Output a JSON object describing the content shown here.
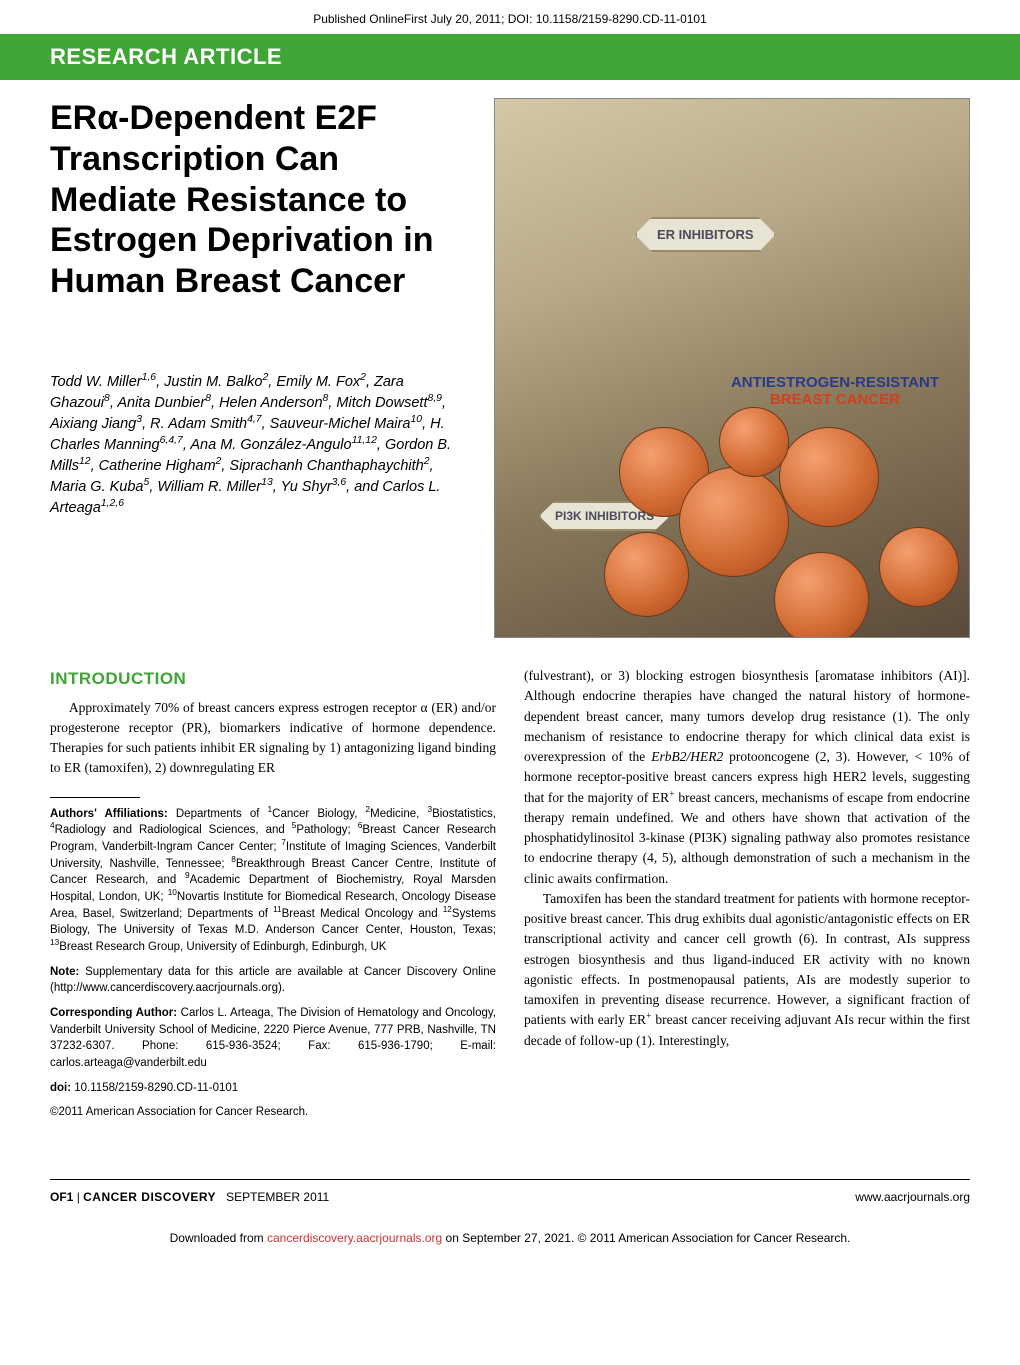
{
  "pub_info": "Published OnlineFirst July 20, 2011; DOI: 10.1158/2159-8290.CD-11-0101",
  "banner": "RESEARCH ARTICLE",
  "title_html": "ERα-Dependent E2F Transcription Can Mediate Resistance to Estrogen Deprivation in Human Breast Cancer",
  "authors_html": "Todd W. Miller<sup>1,6</sup>, Justin M. Balko<sup>2</sup>, Emily M. Fox<sup>2</sup>, Zara Ghazoui<sup>8</sup>, Anita Dunbier<sup>8</sup>, Helen Anderson<sup>8</sup>, Mitch Dowsett<sup>8,9</sup>, Aixiang Jiang<sup>3</sup>, R. Adam Smith<sup>4,7</sup>, Sauveur-Michel Maira<sup>10</sup>, H. Charles Manning<sup>6,4,7</sup>, Ana M. González-Angulo<sup>11,12</sup>, Gordon B. Mills<sup>12</sup>, Catherine Higham<sup>2</sup>, Siprachanh Chanthaphaychith<sup>2</sup>, Maria G. Kuba<sup>5</sup>, William R. Miller<sup>13</sup>, Yu Shyr<sup>3,6</sup>, and Carlos L. Arteaga<sup>1,2,6</sup>",
  "figure": {
    "hex1": "ER INHIBITORS",
    "hex2": "PI3K INHIBITORS",
    "resist_l1": "ANTIESTROGEN-RESISTANT",
    "resist_l2": "BREAST CANCER"
  },
  "intro_heading": "INTRODUCTION",
  "intro_p1": "Approximately 70% of breast cancers express estrogen receptor α (ER) and/or progesterone receptor (PR), biomarkers indicative of hormone dependence. Therapies for such patients inhibit ER signaling by 1) antagonizing ligand binding to ER (tamoxifen), 2) downregulating ER",
  "col2_p1_html": "(fulvestrant), or 3) blocking estrogen biosynthesis [aromatase inhibitors (AI)]. Although endocrine therapies have changed the natural history of hormone-dependent breast cancer, many tumors develop drug resistance (1). The only mechanism of resistance to endocrine therapy for which clinical data exist is overexpression of the <i>ErbB2/HER2</i> protooncogene (2, 3). However, &lt; 10% of hormone receptor-positive breast cancers express high HER2 levels, suggesting that for the majority of ER<sup>+</sup> breast cancers, mechanisms of escape from endocrine therapy remain undefined. We and others have shown that activation of the phosphatidylinositol 3-kinase (PI3K) signaling pathway also promotes resistance to endocrine therapy (4, 5), although demonstration of such a mechanism in the clinic awaits confirmation.",
  "col2_p2_html": "Tamoxifen has been the standard treatment for patients with hormone receptor-positive breast cancer. This drug exhibits dual agonistic/antagonistic effects on ER transcriptional activity and cancer cell growth (6). In contrast, AIs suppress estrogen biosynthesis and thus ligand-induced ER activity with no known agonistic effects. In postmenopausal patients, AIs are modestly superior to tamoxifen in preventing disease recurrence. However, a significant fraction of patients with early ER<sup>+</sup> breast cancer receiving adjuvant AIs recur within the first decade of follow-up (1). Interestingly,",
  "affiliations_html": "<span class=\"label\">Authors' Affiliations:</span> Departments of <sup>1</sup>Cancer Biology, <sup>2</sup>Medicine, <sup>3</sup>Biostatistics, <sup>4</sup>Radiology and Radiological Sciences, and <sup>5</sup>Pathology; <sup>6</sup>Breast Cancer Research Program, Vanderbilt-Ingram Cancer Center; <sup>7</sup>Institute of Imaging Sciences, Vanderbilt University, Nashville, Tennessee; <sup>8</sup>Breakthrough Breast Cancer Centre, Institute of Cancer Research, and <sup>9</sup>Academic Department of Biochemistry, Royal Marsden Hospital, London, UK; <sup>10</sup>Novartis Institute for Biomedical Research, Oncology Disease Area, Basel, Switzerland; Departments of <sup>11</sup>Breast Medical Oncology and <sup>12</sup>Systems Biology, The University of Texas M.D. Anderson Cancer Center, Houston, Texas; <sup>13</sup>Breast Research Group, University of Edinburgh, Edinburgh, UK",
  "note_html": "<span class=\"label\">Note:</span> Supplementary data for this article are available at Cancer Discovery Online (http://www.cancerdiscovery.aacrjournals.org).",
  "corresponding_html": "<span class=\"label\">Corresponding Author:</span> Carlos L. Arteaga, The Division of Hematology and Oncology, Vanderbilt University School of Medicine, 2220 Pierce Avenue, 777 PRB, Nashville, TN 37232-6307. Phone: 615-936-3524; Fax: 615-936-1790; E-mail: carlos.arteaga@vanderbilt.edu",
  "doi_html": "<span class=\"label\">doi:</span> 10.1158/2159-8290.CD-11-0101",
  "copyright": "©2011 American Association for Cancer Research.",
  "footer": {
    "page_num": "OF1",
    "journal": "CANCER DISCOVERY",
    "issue_date": "SEPTEMBER 2011",
    "url": "www.aacrjournals.org"
  },
  "download_html": "Downloaded from <a href=\"#\">cancerdiscovery.aacrjournals.org</a> on September 27, 2021. © 2011 American Association for Cancer Research.",
  "colors": {
    "banner_bg": "#3fa535",
    "banner_text": "#ffffff",
    "intro_heading": "#3fa535",
    "link": "#cc3333"
  }
}
